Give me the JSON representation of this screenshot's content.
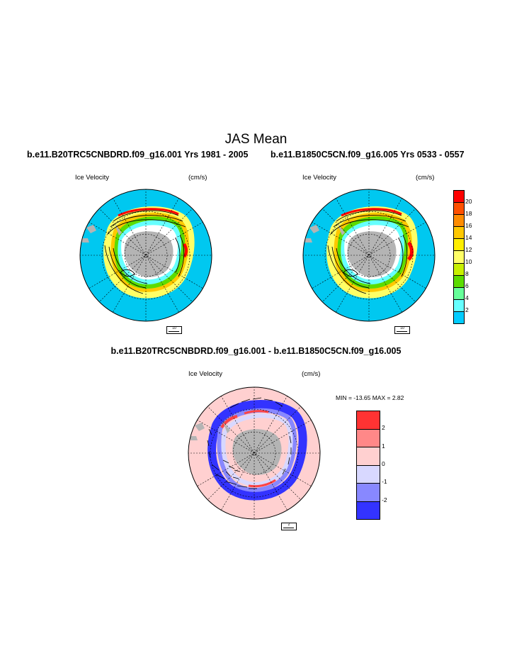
{
  "figure": {
    "title": "JAS Mean",
    "case_left": "b.e11.B20TRC5CNBDRD.f09_g16.001  Yrs 1981 - 2005",
    "case_right": "b.e11.B1850C5CN.f09_g16.005  Yrs 0533 - 0557",
    "diff_title": "b.e11.B20TRC5CNBDRD.f09_g16.001 - b.e11.B1850C5CN.f09_g16.005"
  },
  "panels": [
    {
      "field": "Ice Velocity",
      "units": "(cm/s)",
      "ref_vector": "10"
    },
    {
      "field": "Ice Velocity",
      "units": "(cm/s)",
      "ref_vector": "10"
    },
    {
      "field": "Ice Velocity",
      "units": "(cm/s)",
      "ref_vector": "2",
      "minmax": "MIN = -13.65 MAX =   2.82"
    }
  ],
  "colorbar_top": {
    "labels": [
      "20",
      "18",
      "16",
      "14",
      "12",
      "10",
      "8",
      "6",
      "4",
      "2"
    ],
    "colors": [
      "#ff0000",
      "#ff5000",
      "#ff8c00",
      "#ffc800",
      "#ffee00",
      "#ffff66",
      "#c8f000",
      "#5cdc00",
      "#66ff99",
      "#66ffff",
      "#00ccff"
    ]
  },
  "colorbar_diff": {
    "labels": [
      "2",
      "1",
      "0",
      "-1",
      "-2"
    ],
    "colors": [
      "#ff3333",
      "#ff8888",
      "#ffd0d0",
      "#d8d8ff",
      "#8888ff",
      "#3333ff"
    ]
  },
  "map_colors": {
    "ocean": "#00c8f0",
    "land": "#b4b4b4",
    "diff_background": "#ffd0d0",
    "diff_negative": "#3333ff",
    "diff_positive": "#ff4444"
  }
}
